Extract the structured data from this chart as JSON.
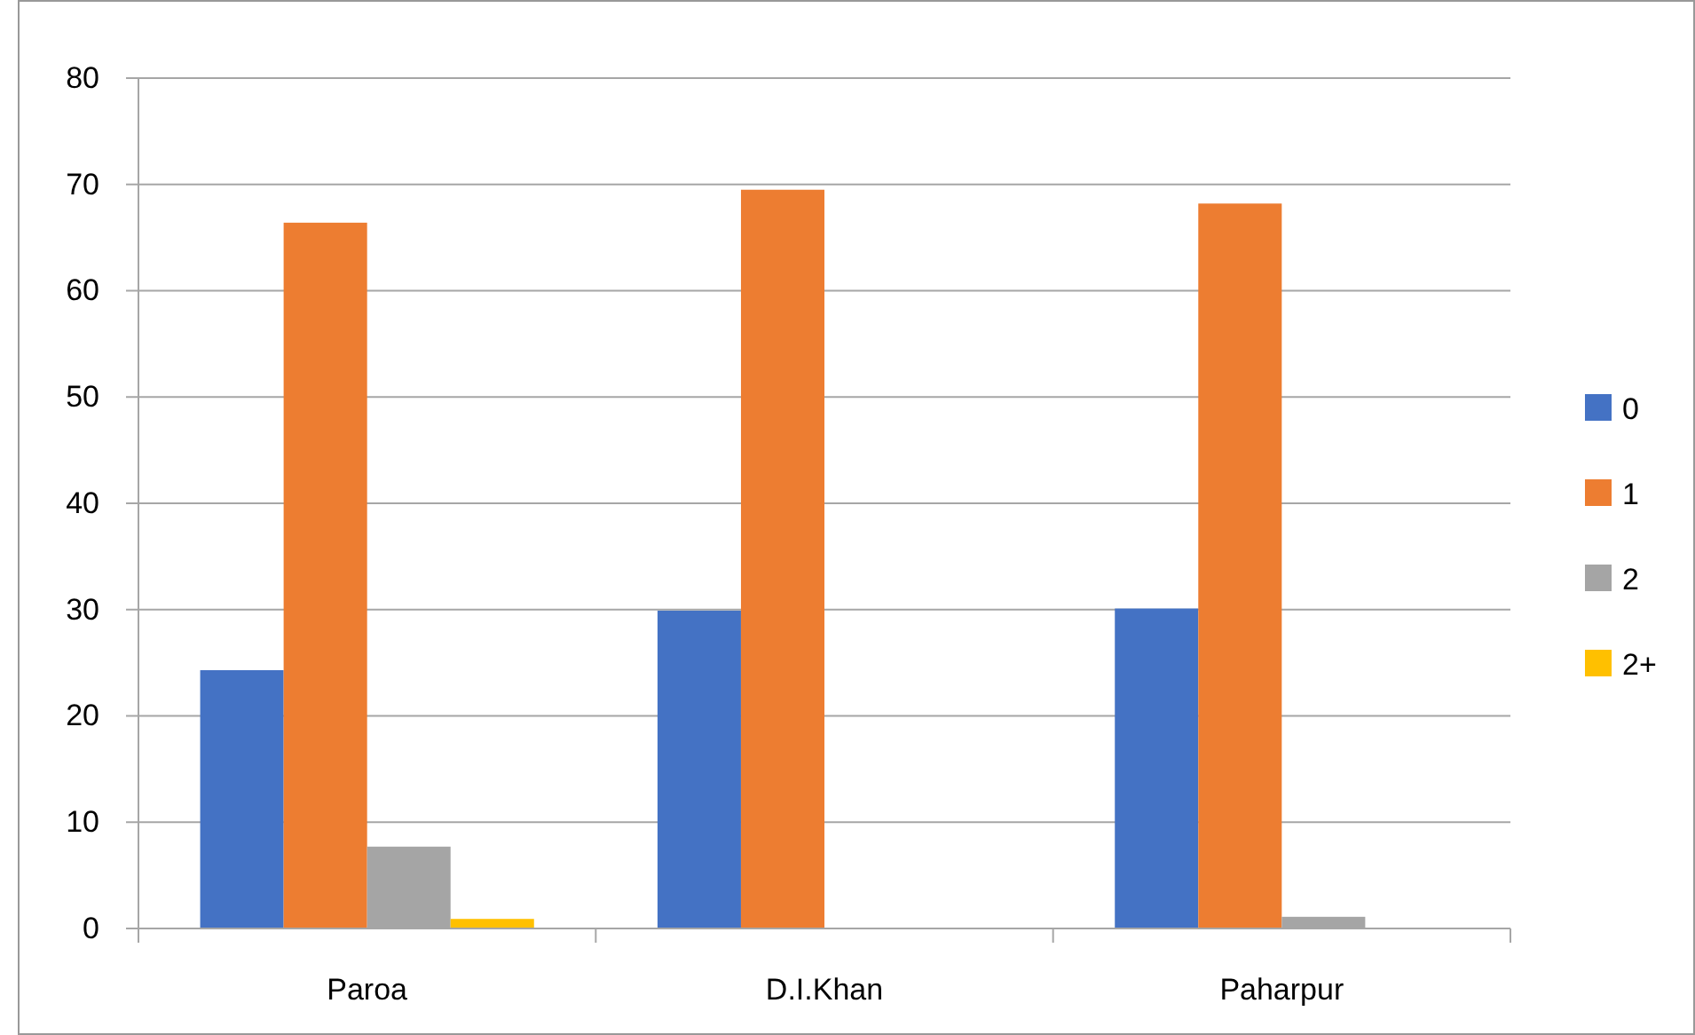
{
  "chart_data": {
    "type": "bar",
    "categories": [
      "Paroa",
      "D.I.Khan",
      "Paharpur"
    ],
    "series": [
      {
        "name": "0",
        "color": "#4472c4",
        "values": [
          24.3,
          29.9,
          30.1
        ]
      },
      {
        "name": "1",
        "color": "#ed7d31",
        "values": [
          66.4,
          69.5,
          68.2
        ]
      },
      {
        "name": "2",
        "color": "#a5a5a5",
        "values": [
          7.7,
          0,
          1.1
        ]
      },
      {
        "name": "2+",
        "color": "#ffc000",
        "values": [
          0.9,
          0,
          0
        ]
      }
    ],
    "ylim": [
      0,
      80
    ],
    "yticks": [
      0,
      10,
      20,
      30,
      40,
      50,
      60,
      70,
      80
    ],
    "grid": "y",
    "legend": "right"
  }
}
